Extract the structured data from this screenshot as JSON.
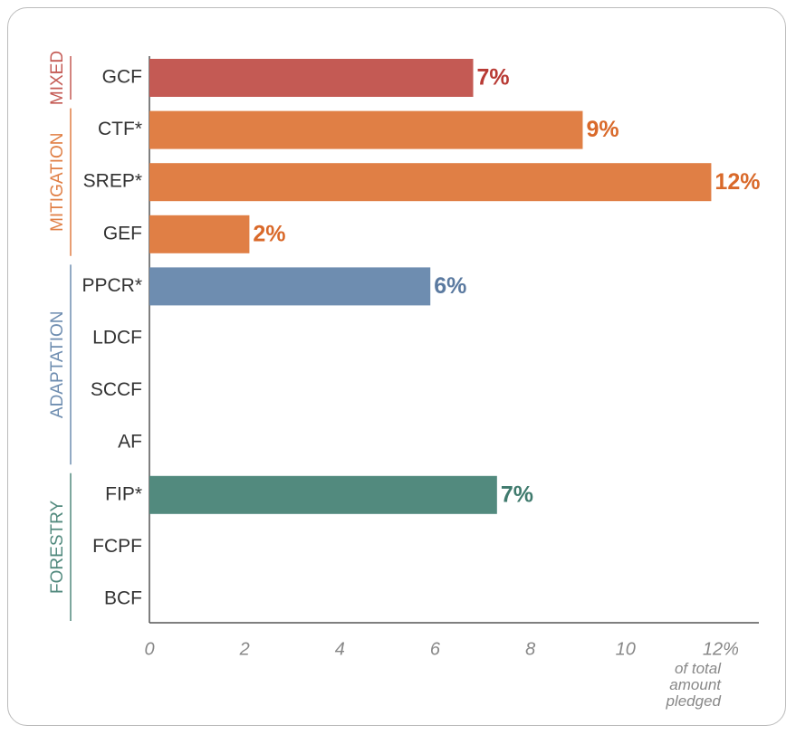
{
  "chart_data": {
    "type": "bar",
    "orientation": "horizontal",
    "x_label": "of total amount pledged",
    "xlim": [
      0,
      12.8
    ],
    "xticks": [
      0,
      2,
      4,
      6,
      8,
      10,
      {
        "value": 12,
        "label": "12%"
      }
    ],
    "series": [
      {
        "name": "MIXED",
        "color": "#c45a54",
        "label_color": "#b83a34",
        "categories": [
          "GCF"
        ],
        "values": [
          6.8
        ],
        "value_labels": [
          "7%"
        ]
      },
      {
        "name": "MITIGATION",
        "color": "#e07f45",
        "label_color": "#d9692a",
        "categories": [
          "CTF*",
          "SREP*",
          "GEF"
        ],
        "values": [
          9.1,
          11.8,
          2.1
        ],
        "value_labels": [
          "9%",
          "12%",
          "2%"
        ]
      },
      {
        "name": "ADAPTATION",
        "color": "#6e8db0",
        "label_color": "#5b7aa0",
        "categories": [
          "PPCR*",
          "LDCF",
          "SCCF",
          "AF"
        ],
        "values": [
          5.9,
          null,
          null,
          null
        ],
        "value_labels": [
          "6%",
          null,
          null,
          null
        ]
      },
      {
        "name": "FORESTRY",
        "color": "#528a7e",
        "label_color": "#3f7a6d",
        "categories": [
          "FIP*",
          "FCPF",
          "BCF"
        ],
        "values": [
          7.3,
          null,
          null
        ],
        "value_labels": [
          "7%",
          null,
          null
        ]
      }
    ]
  }
}
